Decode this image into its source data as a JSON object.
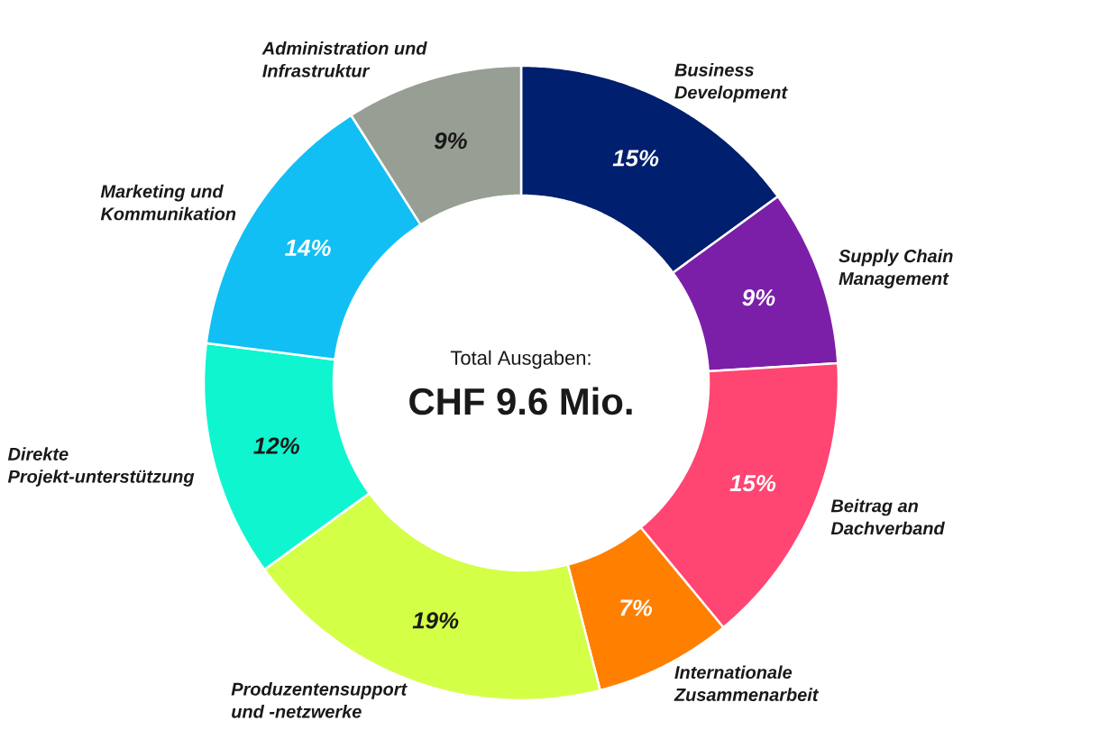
{
  "chart_data": {
    "type": "donut",
    "categories": [
      "Business Development",
      "Supply Chain Management",
      "Beitrag an Dachverband",
      "Internationale Zusammenarbeit",
      "Produzentensupport und -netzwerke",
      "Direkte Projekt-unterstützung",
      "Marketing und Kommunikation",
      "Administration und Infrastruktur"
    ],
    "values": [
      15,
      9,
      15,
      7,
      19,
      12,
      14,
      9
    ],
    "colors": [
      "#001f6e",
      "#7b1fa8",
      "#ff4572",
      "#ff7f00",
      "#d4ff47",
      "#0ff5d0",
      "#12bff5",
      "#979e93"
    ],
    "value_labels": [
      "15%",
      "9%",
      "15%",
      "7%",
      "19%",
      "12%",
      "14%",
      "9%"
    ],
    "annotations": [
      "Total Ausgaben:",
      "CHF 9.6 Mio."
    ]
  }
}
